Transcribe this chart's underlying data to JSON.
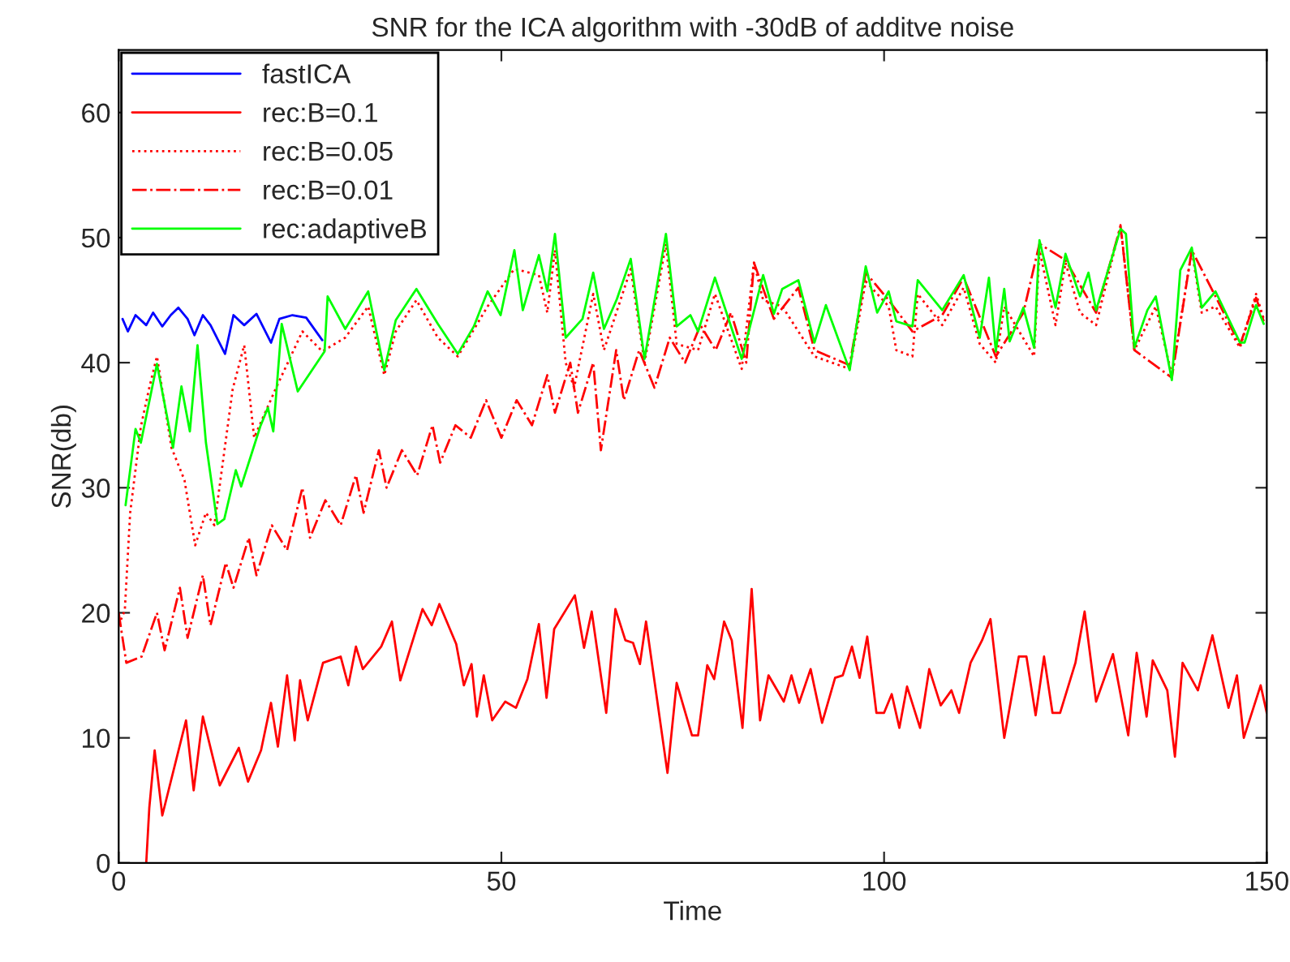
{
  "chart_data": {
    "type": "line",
    "title": "SNR for the ICA algorithm with -30dB of additve noise",
    "xlabel": "Time",
    "ylabel": "SNR(db)",
    "xlim": [
      0,
      150
    ],
    "xticks": [
      0,
      50,
      100,
      150
    ],
    "ylim": [
      0,
      65
    ],
    "yticks": [
      0,
      10,
      20,
      30,
      40,
      50,
      60
    ],
    "grid": false,
    "legend": "top left",
    "marker": "none",
    "series": [
      {
        "name": "fastICA",
        "color": "#0000ff",
        "line_style": "solid",
        "x": [
          0.5,
          1.2,
          2.2,
          3.6,
          4.5,
          5.7,
          6.8,
          7.8,
          9,
          9.9,
          11,
          12,
          13.9,
          15,
          16.4,
          18,
          19.9,
          21,
          22.7,
          24.5,
          26.6
        ],
        "values": [
          43.5,
          42.5,
          43.8,
          43,
          44,
          42.9,
          43.8,
          44.4,
          43.5,
          42.2,
          43.8,
          43,
          40.7,
          43.8,
          43,
          43.9,
          41.6,
          43.5,
          43.8,
          43.6,
          41.8
        ]
      },
      {
        "name": "rec:B=0.1",
        "color": "#ff0000",
        "line_style": "solid",
        "x": [
          3.6,
          4,
          4.7,
          5.7,
          8.8,
          9.8,
          11,
          13.2,
          15.7,
          16.9,
          18.6,
          19.9,
          20.8,
          22,
          23,
          23.7,
          24.7,
          26.7,
          29,
          30,
          31,
          31.9,
          34.3,
          35.7,
          36.8,
          39.7,
          40.9,
          41.9,
          44.1,
          45.1,
          46.1,
          46.8,
          47.7,
          48.8,
          50.5,
          51.9,
          53.4,
          54.9,
          55.9,
          56.9,
          59.6,
          60.8,
          61.8,
          63.7,
          64.9,
          66.2,
          67.2,
          68.1,
          68.9,
          71.7,
          72.9,
          74.9,
          75.7,
          76.9,
          77.8,
          79.1,
          80.1,
          81.5,
          82.7,
          83.8,
          84.9,
          86.9,
          87.9,
          88.9,
          90.4,
          91.9,
          93.6,
          94.6,
          95.8,
          96.8,
          97.8,
          99,
          100,
          101,
          102,
          103,
          104.7,
          105.9,
          107.4,
          108.8,
          109.8,
          111.3,
          112.8,
          113.9,
          115.7,
          117.6,
          118.6,
          119.8,
          120.9,
          122,
          123,
          125,
          126.2,
          127.7,
          129.9,
          131.9,
          133,
          134.3,
          135.1,
          137,
          138,
          139,
          141,
          142.9,
          145,
          146.1,
          147,
          149.2,
          150
        ],
        "values": [
          0,
          4.4,
          9,
          3.8,
          11.4,
          5.8,
          11.7,
          6.2,
          9.2,
          6.5,
          9,
          12.8,
          9.3,
          15,
          9.8,
          14.6,
          11.4,
          16,
          16.5,
          14.2,
          17.3,
          15.5,
          17.3,
          19.3,
          14.6,
          20.3,
          19,
          20.7,
          17.5,
          14.2,
          15.9,
          11.7,
          15,
          11.4,
          12.9,
          12.4,
          14.7,
          19.1,
          13.2,
          18.7,
          21.4,
          17.2,
          20.1,
          12,
          20.3,
          17.8,
          17.6,
          15.9,
          19.3,
          7.2,
          14.4,
          10.2,
          10.2,
          15.8,
          14.7,
          19.3,
          17.8,
          10.8,
          21.9,
          11.4,
          15,
          12.9,
          15,
          12.8,
          15.5,
          11.2,
          14.8,
          15,
          17.3,
          14.8,
          18.1,
          12,
          12,
          13.5,
          10.8,
          14.1,
          10.8,
          15.5,
          12.6,
          13.8,
          12,
          16,
          17.8,
          19.5,
          10,
          16.5,
          16.5,
          11.8,
          16.5,
          12,
          12,
          16,
          20.1,
          12.9,
          16.7,
          10.2,
          16.8,
          11.7,
          16.2,
          13.8,
          8.5,
          16,
          13.8,
          18.2,
          12.4,
          15,
          10,
          14.2,
          12
        ]
      },
      {
        "name": "rec:B=0.05",
        "color": "#ff0000",
        "line_style": "dotted",
        "x": [
          0,
          0.8,
          1.5,
          2.9,
          4,
          5,
          6.9,
          8.6,
          10,
          11.4,
          12.5,
          14.9,
          16.4,
          17.7,
          20.5,
          24,
          26.6,
          29.6,
          32.6,
          34.7,
          36.2,
          38.9,
          41.7,
          44.3,
          48.2,
          51.7,
          54.9,
          56,
          57,
          58.4,
          59.5,
          62,
          63.4,
          66.9,
          68.7,
          71.5,
          72.9,
          75.7,
          77.9,
          81.4,
          83,
          84.2,
          86.7,
          90.9,
          95.5,
          97.6,
          100.6,
          101.6,
          103.7,
          104.4,
          107.6,
          110.4,
          112.5,
          114.6,
          115.7,
          119.6,
          120.3,
          122.4,
          123.7,
          125.6,
          127.7,
          130.9,
          132.7,
          135.5,
          137.6,
          140.2,
          141.5,
          143.3,
          146.5,
          148.6,
          149.6
        ],
        "values": [
          19,
          20.2,
          28,
          34.9,
          38,
          40.5,
          33.2,
          30.6,
          25.4,
          28,
          27,
          37.9,
          41.4,
          34,
          37.9,
          42.5,
          40.9,
          42,
          44.5,
          39,
          42.5,
          45,
          42,
          40.5,
          44.5,
          47.5,
          47,
          44,
          49,
          40,
          38,
          45.5,
          41,
          47.5,
          40,
          49.5,
          41.5,
          41,
          45.5,
          39.5,
          48,
          45,
          44.5,
          40.5,
          39.5,
          46.5,
          44.5,
          41,
          40.5,
          45.5,
          43,
          46,
          41.5,
          40,
          44.5,
          40.5,
          49,
          43,
          48,
          44,
          43,
          51,
          41,
          44.5,
          39,
          49,
          44,
          44.5,
          41.2,
          45.5,
          43.5
        ]
      },
      {
        "name": "rec:B=0.01",
        "color": "#ff0000",
        "line_style": "dashdot",
        "x": [
          0,
          1,
          3,
          5,
          6,
          8,
          9,
          11,
          12,
          14,
          15,
          17,
          18,
          20,
          22,
          24,
          25,
          27,
          29,
          31,
          32,
          34,
          35,
          37,
          39,
          41,
          42,
          44,
          46,
          48,
          50,
          52,
          54,
          56,
          57,
          59,
          60,
          62,
          63,
          65,
          66,
          68,
          70,
          72,
          74,
          76,
          78,
          80,
          82,
          83,
          85.6,
          88.8,
          90.9,
          95.5,
          97.6,
          100.6,
          103.7,
          107.6,
          110.4,
          114.6,
          118.2,
          120.3,
          123.7,
          127.7,
          130.9,
          132.7,
          137.6,
          140.2,
          143.3,
          146.5,
          148.6,
          149.6
        ],
        "values": [
          20,
          16,
          16.5,
          20,
          17,
          22,
          18,
          23,
          19,
          24,
          22,
          26,
          23,
          27,
          25,
          30,
          26,
          29,
          27,
          31,
          28,
          33,
          30,
          33,
          31,
          35,
          32,
          35,
          34,
          37,
          34,
          37,
          35,
          39,
          36,
          40,
          36,
          40,
          33,
          41,
          37,
          41,
          38,
          42,
          40,
          43,
          41,
          44,
          40,
          48,
          43.5,
          46,
          41,
          39.8,
          47.2,
          45,
          42.5,
          43.8,
          46.8,
          40.5,
          44,
          49.5,
          48.2,
          44,
          50.9,
          41,
          38.8,
          49,
          45.3,
          41.4,
          45.2,
          43.3
        ]
      },
      {
        "name": "rec:adaptiveB",
        "color": "#00ff00",
        "line_style": "solid",
        "x": [
          0.9,
          2.2,
          2.9,
          5,
          7.1,
          8.2,
          9.3,
          10.3,
          11.4,
          12.9,
          13.8,
          15.3,
          16,
          18.5,
          19.5,
          20.2,
          21.3,
          23.4,
          26.9,
          27.3,
          29.6,
          32.6,
          34.7,
          36.2,
          38.9,
          41.7,
          44.3,
          46.4,
          48.2,
          49.9,
          51.7,
          52.8,
          54.9,
          56,
          57,
          58.4,
          60.6,
          62,
          63.4,
          65.1,
          66.9,
          68.7,
          71.5,
          72.9,
          74.7,
          75.7,
          77.9,
          81.4,
          84.2,
          85.6,
          86.7,
          88.8,
          90.9,
          92.4,
          95.5,
          97.6,
          99.1,
          100.6,
          101.6,
          103.7,
          104.4,
          107.6,
          110.4,
          112.5,
          113.7,
          114.6,
          115.7,
          116.4,
          118.2,
          119.6,
          120.3,
          122.4,
          123.7,
          125.6,
          126.7,
          127.7,
          130.9,
          131.6,
          132.7,
          134.4,
          135.5,
          137.6,
          138.7,
          140.2,
          141.5,
          143.3,
          146.5,
          147.1,
          148.6,
          149.6
        ],
        "values": [
          28.6,
          34.7,
          33.6,
          39.9,
          33.2,
          38.1,
          34.5,
          41.4,
          33.6,
          27.1,
          27.5,
          31.4,
          30.1,
          34.9,
          36.4,
          34.5,
          43.1,
          37.7,
          40.9,
          45.3,
          42.7,
          45.7,
          39.4,
          43.4,
          45.9,
          43.1,
          40.7,
          42.9,
          45.7,
          43.8,
          49,
          44.2,
          48.6,
          45.7,
          50.3,
          42,
          43.5,
          47.2,
          42.7,
          45.1,
          48.3,
          40.3,
          50.3,
          42.9,
          43.8,
          42.5,
          46.8,
          40.3,
          47,
          43.9,
          45.9,
          46.6,
          41.6,
          44.6,
          39.4,
          47.7,
          44,
          45.7,
          43.3,
          42.9,
          46.6,
          44.2,
          47,
          42,
          46.8,
          40.9,
          45.9,
          41.7,
          44.4,
          41.2,
          49.8,
          44.4,
          48.7,
          45.3,
          47.2,
          44.2,
          50.7,
          50.3,
          41.2,
          44.2,
          45.3,
          38.6,
          47.4,
          49.2,
          44.4,
          45.7,
          41.6,
          41.6,
          44.6,
          43.1
        ]
      }
    ]
  }
}
